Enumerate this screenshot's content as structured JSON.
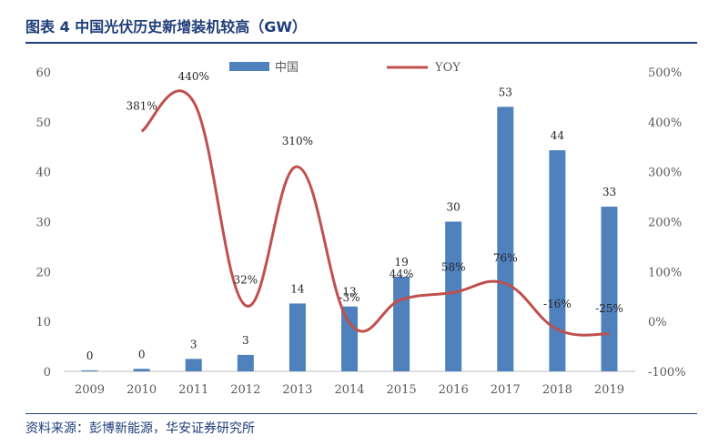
{
  "title": "图表 4 中国光伏历史新增装机较高（GW）",
  "source": "资料来源：彭博新能源，华安证券研究所",
  "colors": {
    "bar": "#4f81bd",
    "line": "#c0504d",
    "header": "#1f3d7a",
    "axis": "#595959"
  },
  "chart_data": {
    "type": "bar",
    "categories": [
      "2009",
      "2010",
      "2011",
      "2012",
      "2013",
      "2014",
      "2015",
      "2016",
      "2017",
      "2018",
      "2019"
    ],
    "series": [
      {
        "name": "中国",
        "type": "bar",
        "axis": "left",
        "values": [
          0.2,
          0.5,
          2.5,
          3.3,
          13.6,
          13,
          19,
          30,
          53,
          44.3,
          33
        ],
        "labels": [
          "0",
          "0",
          "3",
          "3",
          "14",
          "13",
          "19",
          "30",
          "53",
          "44",
          "33"
        ]
      },
      {
        "name": "YOY",
        "type": "line",
        "axis": "right",
        "values": [
          null,
          381,
          440,
          32,
          310,
          -3,
          44,
          58,
          76,
          -16,
          -25
        ],
        "labels": [
          "",
          "381%",
          "440%",
          "32%",
          "310%",
          "-3%",
          "44%",
          "58%",
          "76%",
          "-16%",
          "-25%"
        ]
      }
    ],
    "ylim": [
      0,
      60
    ],
    "yticks": [
      "0",
      "10",
      "20",
      "30",
      "40",
      "50",
      "60"
    ],
    "y2lim": [
      -100,
      500
    ],
    "y2ticks": [
      "-100%",
      "0%",
      "100%",
      "200%",
      "300%",
      "400%",
      "500%"
    ],
    "legend": "top",
    "grid": false
  }
}
